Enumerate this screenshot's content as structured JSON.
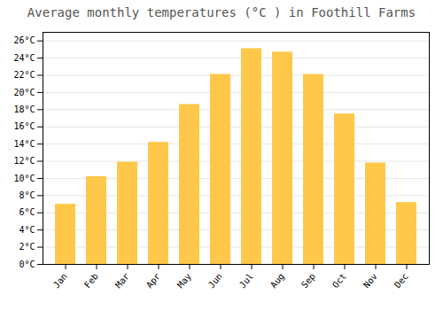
{
  "chart_data": {
    "type": "bar",
    "title": "Average monthly temperatures (°C ) in Foothill Farms",
    "categories": [
      "Jan",
      "Feb",
      "Mar",
      "Apr",
      "May",
      "Jun",
      "Jul",
      "Aug",
      "Sep",
      "Oct",
      "Nov",
      "Dec"
    ],
    "values": [
      7.0,
      10.2,
      11.9,
      14.2,
      18.6,
      22.1,
      25.1,
      24.7,
      22.1,
      17.5,
      11.8,
      7.2
    ],
    "color": "#FFC84A",
    "ylim": [
      0,
      27
    ],
    "yticks": [
      {
        "value": 0,
        "label": "0°C"
      },
      {
        "value": 2,
        "label": "2°C"
      },
      {
        "value": 4,
        "label": "4°C"
      },
      {
        "value": 6,
        "label": "6°C"
      },
      {
        "value": 8,
        "label": "8°C"
      },
      {
        "value": 10,
        "label": "10°C"
      },
      {
        "value": 12,
        "label": "12°C"
      },
      {
        "value": 14,
        "label": "14°C"
      },
      {
        "value": 16,
        "label": "16°C"
      },
      {
        "value": 18,
        "label": "18°C"
      },
      {
        "value": 20,
        "label": "20°C"
      },
      {
        "value": 22,
        "label": "22°C"
      },
      {
        "value": 24,
        "label": "24°C"
      },
      {
        "value": 26,
        "label": "26°C"
      }
    ],
    "grid": true
  }
}
